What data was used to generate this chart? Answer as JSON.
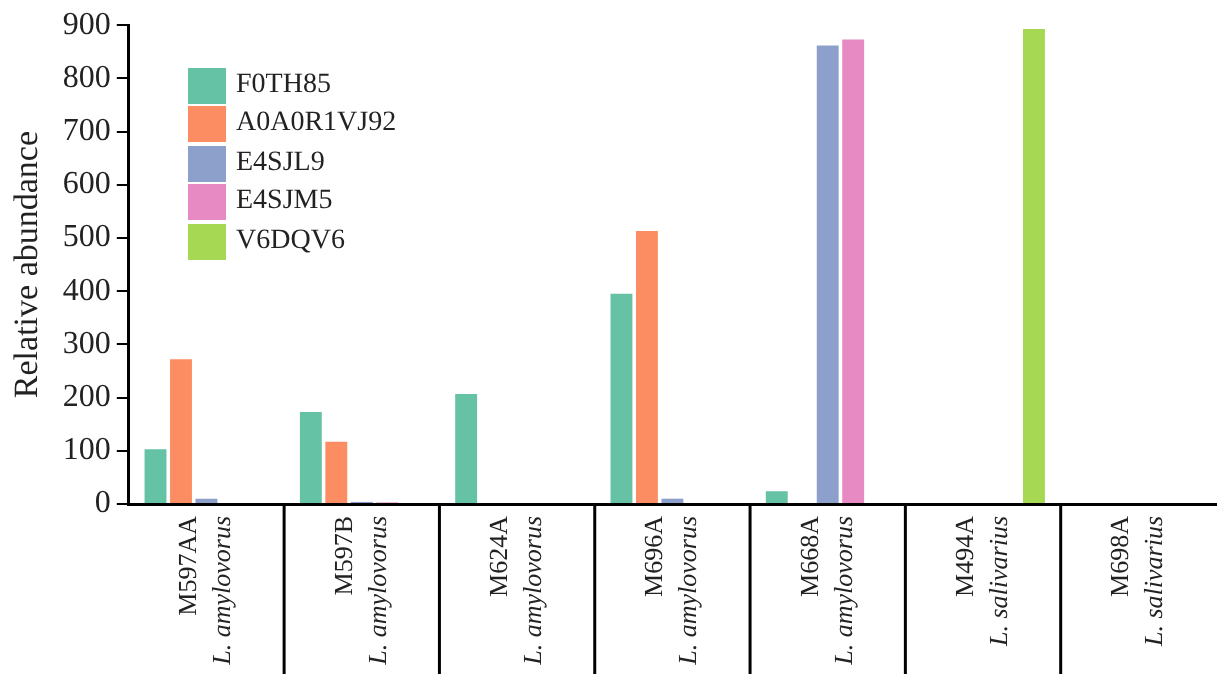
{
  "chart_data": {
    "type": "bar",
    "ylabel": "Relative abundance",
    "categories": [
      "M597AA\nL. amylovorus",
      "M597B\nL. amylovorus",
      "M624A\nL. amylovorus",
      "M696A\nL. amylovorus",
      "M668A\nL. amylovorus",
      "M494A\nL. salivarius",
      "M698A\nL. salivarius"
    ],
    "series": [
      {
        "name": "F0TH85",
        "color": "#66c2a5",
        "values": [
          103,
          173,
          207,
          395,
          24,
          0,
          0
        ]
      },
      {
        "name": "A0A0R1VJ92",
        "color": "#fc8d62",
        "values": [
          272,
          117,
          0,
          513,
          0,
          0,
          0
        ]
      },
      {
        "name": "E4SJL9",
        "color": "#8da0cb",
        "values": [
          10,
          4,
          0,
          10,
          862,
          null,
          0
        ]
      },
      {
        "name": "E4SJM5",
        "color": "#e78ac3",
        "values": [
          null,
          3,
          null,
          0,
          873,
          0,
          0
        ]
      },
      {
        "name": "V6DQV6",
        "color": "#a6d854",
        "values": [
          0,
          0,
          0,
          0,
          0,
          893,
          0
        ]
      }
    ],
    "ylim": [
      0,
      900
    ],
    "yticks": [
      0,
      100,
      200,
      300,
      400,
      500,
      600,
      700,
      800,
      900
    ],
    "grid": false,
    "legend": "top left"
  }
}
